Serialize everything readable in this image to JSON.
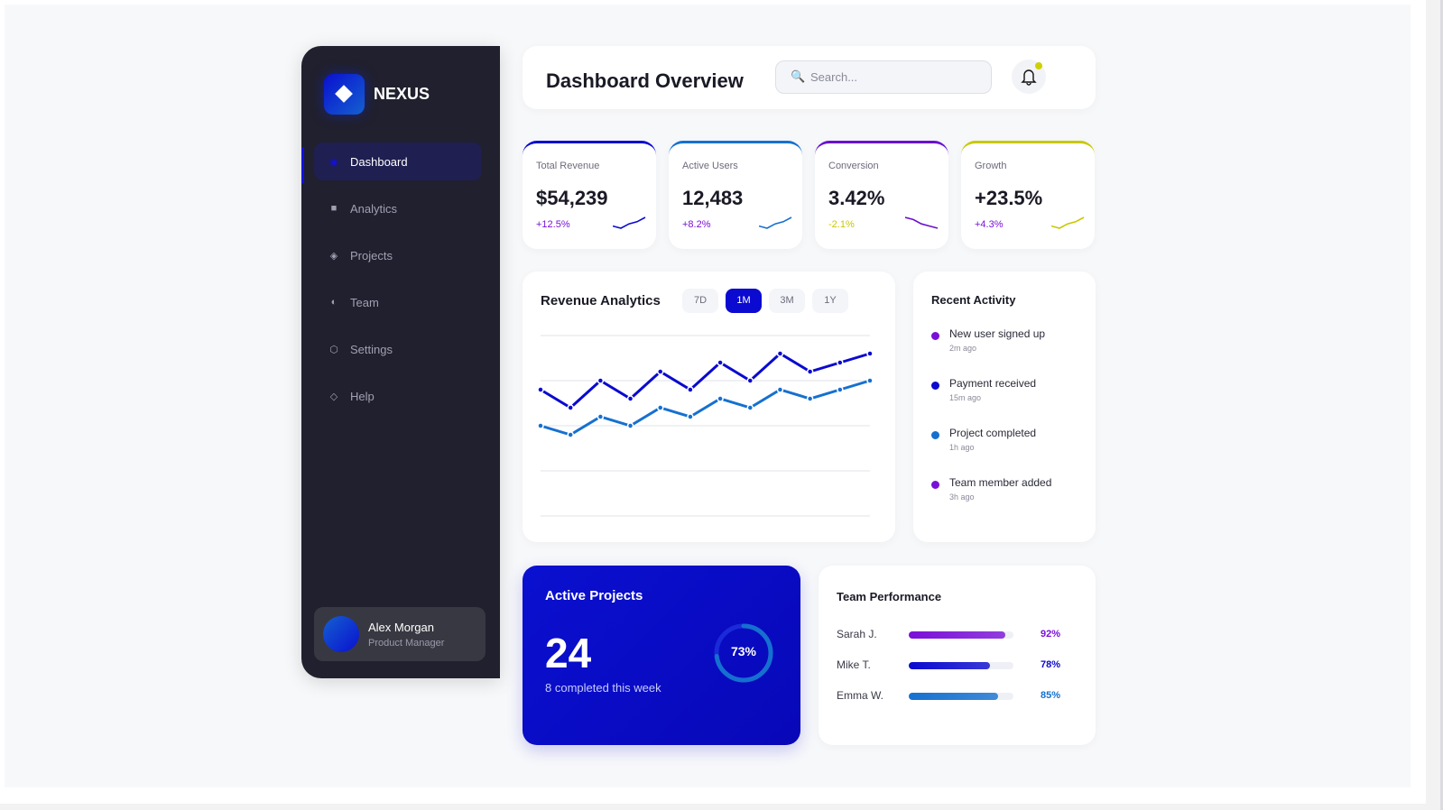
{
  "sidebar": {
    "brand": "NEXUS",
    "items": [
      {
        "label": "Dashboard",
        "icon": "target-icon",
        "glyph": "◉"
      },
      {
        "label": "Analytics",
        "icon": "square-icon",
        "glyph": "■"
      },
      {
        "label": "Projects",
        "icon": "diamond-icon",
        "glyph": "◈"
      },
      {
        "label": "Team",
        "icon": "half-circle-icon",
        "glyph": "◐"
      },
      {
        "label": "Settings",
        "icon": "hexagon-icon",
        "glyph": "⬡"
      },
      {
        "label": "Help",
        "icon": "diamond-outline-icon",
        "glyph": "◇"
      }
    ],
    "user": {
      "name": "Alex Morgan",
      "role": "Product Manager"
    }
  },
  "header": {
    "title": "Dashboard Overview",
    "search_placeholder": "Search...",
    "search_glyph": "🔍",
    "bell_glyph": "🔔"
  },
  "kpis": [
    {
      "label": "Total Revenue",
      "value": "$54,239",
      "change": "+12.5%",
      "color": "#0a0ad0",
      "change_color": "#7a10d8",
      "trend": [
        2,
        1,
        3,
        4,
        6
      ]
    },
    {
      "label": "Active Users",
      "value": "12,483",
      "change": "+8.2%",
      "color": "#1570d0",
      "change_color": "#7a10d8",
      "trend": [
        2,
        1,
        3,
        4,
        6
      ]
    },
    {
      "label": "Conversion",
      "value": "3.42%",
      "change": "-2.1%",
      "color": "#6a10d0",
      "change_color": "#c8c800",
      "trend": [
        6,
        5,
        3,
        2,
        1
      ]
    },
    {
      "label": "Growth",
      "value": "+23.5%",
      "change": "+4.3%",
      "color": "#c8c800",
      "change_color": "#7a10d8",
      "trend": [
        2,
        1,
        3,
        4,
        6
      ]
    }
  ],
  "revenue": {
    "title": "Revenue Analytics",
    "ranges": [
      "7D",
      "1M",
      "3M",
      "1Y"
    ],
    "selected": "1M"
  },
  "chart_data": {
    "type": "line",
    "ylim": [
      0,
      100
    ],
    "grid": true,
    "series": [
      {
        "color": "#0a0ad0",
        "values": [
          70,
          60,
          75,
          65,
          80,
          70,
          85,
          75,
          90,
          80,
          85,
          90
        ]
      },
      {
        "color": "#1570d0",
        "values": [
          50,
          45,
          55,
          50,
          60,
          55,
          65,
          60,
          70,
          65,
          70,
          75
        ]
      }
    ]
  },
  "activity": {
    "title": "Recent Activity",
    "items": [
      {
        "text": "New user signed up",
        "time": "2m ago",
        "color": "#7a10d8"
      },
      {
        "text": "Payment received",
        "time": "15m ago",
        "color": "#0a0ad0"
      },
      {
        "text": "Project completed",
        "time": "1h ago",
        "color": "#1570d0"
      },
      {
        "text": "Team member added",
        "time": "3h ago",
        "color": "#7a10d8"
      }
    ]
  },
  "projects": {
    "title": "Active Projects",
    "count": "24",
    "subtitle": "8 completed this week",
    "progress_label": "73%",
    "progress": 73
  },
  "team": {
    "title": "Team Performance",
    "members": [
      {
        "name": "Sarah J.",
        "pct_label": "92%",
        "pct": 92,
        "color": "#7a10d8"
      },
      {
        "name": "Mike T.",
        "pct_label": "78%",
        "pct": 78,
        "color": "#0a0ad0"
      },
      {
        "name": "Emma W.",
        "pct_label": "85%",
        "pct": 85,
        "color": "#1570d0"
      }
    ]
  }
}
